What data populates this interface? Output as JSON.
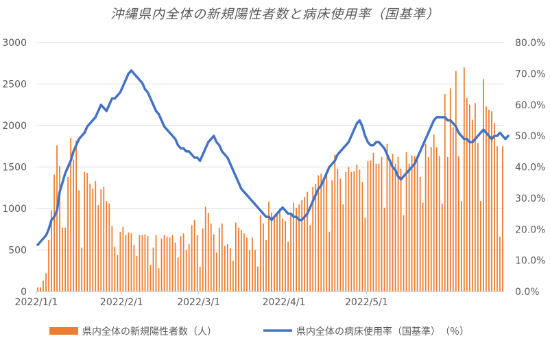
{
  "title": "沖縄県内全体の新規陽性者数と病床使用率（国基準）",
  "chart_data": {
    "type": "bar+line",
    "title": "沖縄県内全体の新規陽性者数と病床使用率（国基準）",
    "x_ticks": [
      "2022/1/1",
      "2022/2/1",
      "2022/3/1",
      "2022/4/1",
      "2022/5/1"
    ],
    "y_left": {
      "ylim": [
        0,
        3000
      ],
      "ticks": [
        "0",
        "500",
        "1000",
        "1500",
        "2000",
        "2500",
        "3000"
      ]
    },
    "y_right": {
      "ylim": [
        0,
        0.8
      ],
      "ticks": [
        "0.0%",
        "10.0%",
        "20.0%",
        "30.0%",
        "40.0%",
        "50.0%",
        "60.0%",
        "70.0%",
        "80.0%"
      ]
    },
    "start_date": "2022-01-01",
    "bar_series": {
      "name": "県内全体の新規陽性者数（人）",
      "color": "#ED7D31",
      "values": [
        50,
        50,
        130,
        220,
        620,
        980,
        1410,
        1760,
        1510,
        770,
        770,
        1380,
        1850,
        1590,
        1820,
        1220,
        530,
        1440,
        1430,
        1300,
        1240,
        1330,
        1040,
        1230,
        1260,
        1090,
        1060,
        790,
        540,
        440,
        720,
        780,
        680,
        710,
        700,
        560,
        430,
        680,
        680,
        690,
        670,
        320,
        530,
        680,
        280,
        640,
        680,
        660,
        650,
        680,
        590,
        410,
        670,
        700,
        500,
        570,
        800,
        860,
        680,
        300,
        760,
        1020,
        950,
        820,
        690,
        470,
        770,
        820,
        550,
        570,
        520,
        370,
        830,
        770,
        740,
        700,
        650,
        500,
        650,
        500,
        300,
        920,
        820,
        620,
        1080,
        950,
        900,
        930,
        1000,
        880,
        850,
        600,
        950,
        1070,
        1010,
        1050,
        1100,
        1140,
        1200,
        800,
        1260,
        1300,
        1400,
        1420,
        1370,
        1420,
        720,
        1340,
        1650,
        1480,
        1360,
        1050,
        1440,
        1500,
        1440,
        1450,
        1530,
        1470,
        1320,
        890,
        1570,
        1580,
        1670,
        1540,
        1540,
        1620,
        1010,
        1780,
        1560,
        1660,
        1540,
        1620,
        1480,
        920,
        1680,
        1540,
        1640,
        1630,
        1640,
        1380,
        1070,
        1780,
        1620,
        1740,
        1890,
        1740,
        1630,
        1060,
        2380,
        1620,
        2450,
        1980,
        2660,
        1630,
        1090,
        2700,
        2330,
        2250,
        2070,
        2270,
        1790,
        1090,
        2560,
        2230,
        2190,
        2170,
        2030,
        1750,
        660,
        1750
      ]
    },
    "line_series": {
      "name": "県内全体の病床使用率（国基準）　（％）",
      "color": "#4472C4",
      "values": [
        0.15,
        0.16,
        0.17,
        0.18,
        0.2,
        0.23,
        0.24,
        0.26,
        0.32,
        0.35,
        0.38,
        0.4,
        0.42,
        0.45,
        0.47,
        0.49,
        0.5,
        0.51,
        0.53,
        0.54,
        0.55,
        0.56,
        0.58,
        0.6,
        0.59,
        0.58,
        0.6,
        0.62,
        0.62,
        0.63,
        0.64,
        0.66,
        0.68,
        0.7,
        0.71,
        0.7,
        0.69,
        0.68,
        0.67,
        0.65,
        0.64,
        0.62,
        0.6,
        0.58,
        0.57,
        0.55,
        0.53,
        0.52,
        0.51,
        0.5,
        0.49,
        0.47,
        0.46,
        0.46,
        0.45,
        0.45,
        0.44,
        0.43,
        0.43,
        0.42,
        0.44,
        0.46,
        0.48,
        0.49,
        0.5,
        0.48,
        0.47,
        0.45,
        0.44,
        0.43,
        0.41,
        0.39,
        0.37,
        0.35,
        0.33,
        0.32,
        0.31,
        0.3,
        0.29,
        0.28,
        0.27,
        0.26,
        0.25,
        0.24,
        0.24,
        0.23,
        0.24,
        0.25,
        0.26,
        0.27,
        0.26,
        0.25,
        0.25,
        0.24,
        0.24,
        0.23,
        0.23,
        0.24,
        0.25,
        0.27,
        0.29,
        0.31,
        0.33,
        0.34,
        0.36,
        0.38,
        0.4,
        0.41,
        0.42,
        0.44,
        0.45,
        0.46,
        0.47,
        0.48,
        0.5,
        0.52,
        0.54,
        0.55,
        0.53,
        0.5,
        0.48,
        0.47,
        0.47,
        0.48,
        0.48,
        0.47,
        0.46,
        0.44,
        0.42,
        0.4,
        0.39,
        0.37,
        0.36,
        0.37,
        0.38,
        0.39,
        0.4,
        0.41,
        0.43,
        0.45,
        0.47,
        0.49,
        0.51,
        0.53,
        0.55,
        0.56,
        0.56,
        0.56,
        0.56,
        0.55,
        0.55,
        0.54,
        0.53,
        0.51,
        0.5,
        0.49,
        0.49,
        0.48,
        0.48,
        0.49,
        0.5,
        0.51,
        0.52,
        0.51,
        0.5,
        0.49,
        0.5,
        0.5,
        0.51,
        0.5,
        0.49,
        0.5
      ]
    }
  }
}
